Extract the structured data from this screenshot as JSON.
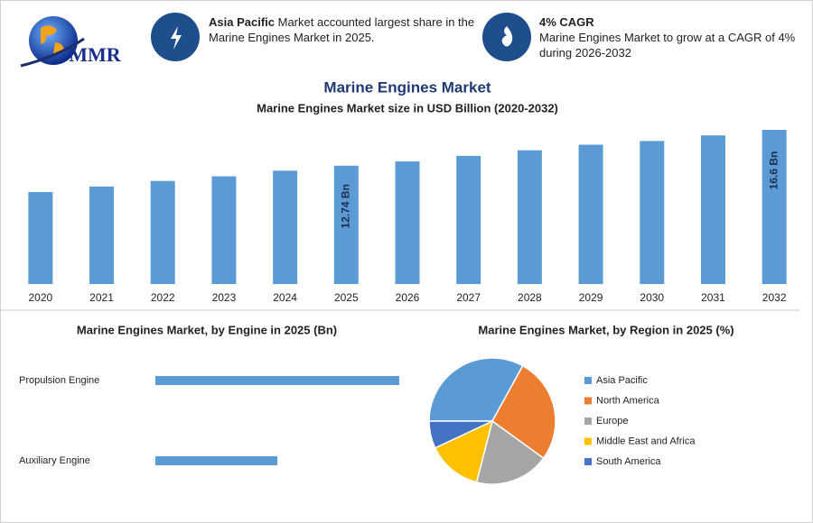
{
  "header": {
    "logo": "MMR",
    "info_1": {
      "bold": "Asia Pacific",
      "text": "Market accounted largest share in the Marine Engines Market in 2025."
    },
    "info_2": {
      "title": "4% CAGR",
      "text": "Marine Engines Market to grow at a CAGR of 4% during 2026-2032"
    }
  },
  "title": "Marine Engines Market",
  "chart_data": [
    {
      "type": "bar",
      "title": "Marine Engines Market size in USD Billion (2020-2032)",
      "categories": [
        "2020",
        "2021",
        "2022",
        "2023",
        "2024",
        "2025",
        "2026",
        "2027",
        "2028",
        "2029",
        "2030",
        "2031",
        "2032"
      ],
      "values": [
        9.9,
        10.5,
        11.1,
        11.6,
        12.2,
        12.74,
        13.2,
        13.8,
        14.4,
        15.0,
        15.4,
        16.0,
        16.6
      ],
      "value_labels": [
        null,
        null,
        null,
        null,
        null,
        "12.74 Bn",
        null,
        null,
        null,
        null,
        null,
        null,
        "16.6 Bn"
      ],
      "color": "#5b9bd5"
    },
    {
      "type": "hbar",
      "title": "Marine Engines Market, by Engine in 2025 (Bn)",
      "categories": [
        "Propulsion Engine",
        "Auxiliary Engine"
      ],
      "values": [
        8.5,
        4.25
      ],
      "color": "#5b9bd5"
    },
    {
      "type": "pie",
      "title": "Marine Engines Market, by Region in 2025 (%)",
      "categories": [
        "Asia Pacific",
        "North America",
        "Europe",
        "Middle East and Africa",
        "South America"
      ],
      "values": [
        33,
        27,
        19,
        14,
        7
      ],
      "colors": [
        "#5b9bd5",
        "#ed7d31",
        "#a5a5a5",
        "#ffc000",
        "#4472c4"
      ]
    }
  ]
}
